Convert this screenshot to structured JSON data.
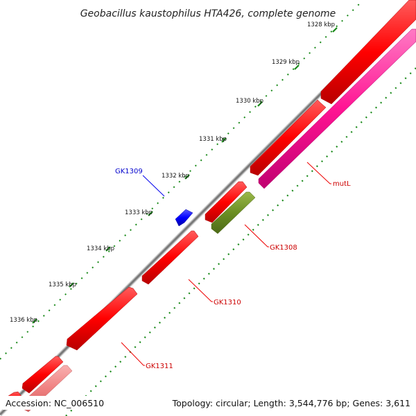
{
  "title": "Geobacillus kaustophilus HTA426, complete genome",
  "ticks": [
    "1328 kbp",
    "1329 kbp",
    "1330 kbp",
    "1331 kbp",
    "1332 kbp",
    "1333 kbp",
    "1334 kbp",
    "1335 kbp",
    "1336 kbp"
  ],
  "genes": [
    {
      "name": "GK1309",
      "label_color": "#0000cc"
    },
    {
      "name": "mutL",
      "label_color": "#cc0000"
    },
    {
      "name": "GK1308",
      "label_color": "#cc0000"
    },
    {
      "name": "GK1310",
      "label_color": "#cc0000"
    },
    {
      "name": "GK1311",
      "label_color": "#cc0000"
    }
  ],
  "footer": {
    "accession": "Accession: NC_006510",
    "summary": "Topology: circular; Length: 3,544,776 bp; Genes: 3,611"
  },
  "colors": {
    "cds_strand": "#ff0000",
    "mutL_feature": "#ff1493",
    "gk1308_feature": "#6b8e23",
    "blue_feature": "#0000ff",
    "light_feature": "#f08080",
    "backbone": "#808080",
    "tick_marks": "#1a8a1a"
  }
}
